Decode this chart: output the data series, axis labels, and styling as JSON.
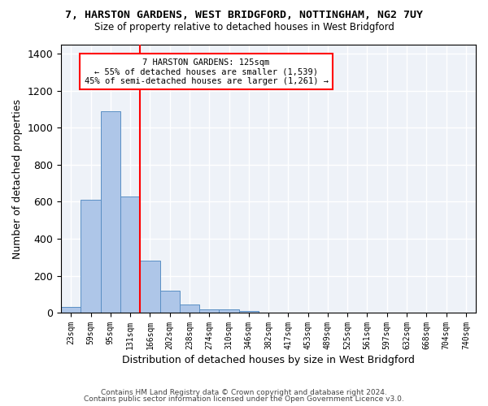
{
  "title": "7, HARSTON GARDENS, WEST BRIDGFORD, NOTTINGHAM, NG2 7UY",
  "subtitle": "Size of property relative to detached houses in West Bridgford",
  "xlabel": "Distribution of detached houses by size in West Bridgford",
  "ylabel": "Number of detached properties",
  "footer_line1": "Contains HM Land Registry data © Crown copyright and database right 2024.",
  "footer_line2": "Contains public sector information licensed under the Open Government Licence v3.0.",
  "annotation_line1": "7 HARSTON GARDENS: 125sqm",
  "annotation_line2": "← 55% of detached houses are smaller (1,539)",
  "annotation_line3": "45% of semi-detached houses are larger (1,261) →",
  "bar_color": "#aec6e8",
  "bar_edge_color": "#5a8fc4",
  "background_color": "#eef2f8",
  "vline_color": "red",
  "bin_labels": [
    "23sqm",
    "59sqm",
    "95sqm",
    "131sqm",
    "166sqm",
    "202sqm",
    "238sqm",
    "274sqm",
    "310sqm",
    "346sqm",
    "382sqm",
    "417sqm",
    "453sqm",
    "489sqm",
    "525sqm",
    "561sqm",
    "597sqm",
    "632sqm",
    "668sqm",
    "704sqm",
    "740sqm"
  ],
  "bar_values": [
    30,
    610,
    1090,
    630,
    280,
    120,
    45,
    20,
    20,
    10,
    0,
    0,
    0,
    0,
    0,
    0,
    0,
    0,
    0,
    0,
    0
  ],
  "vline_position": 3.5,
  "ylim": [
    0,
    1450
  ],
  "yticks": [
    0,
    200,
    400,
    600,
    800,
    1000,
    1200,
    1400
  ]
}
